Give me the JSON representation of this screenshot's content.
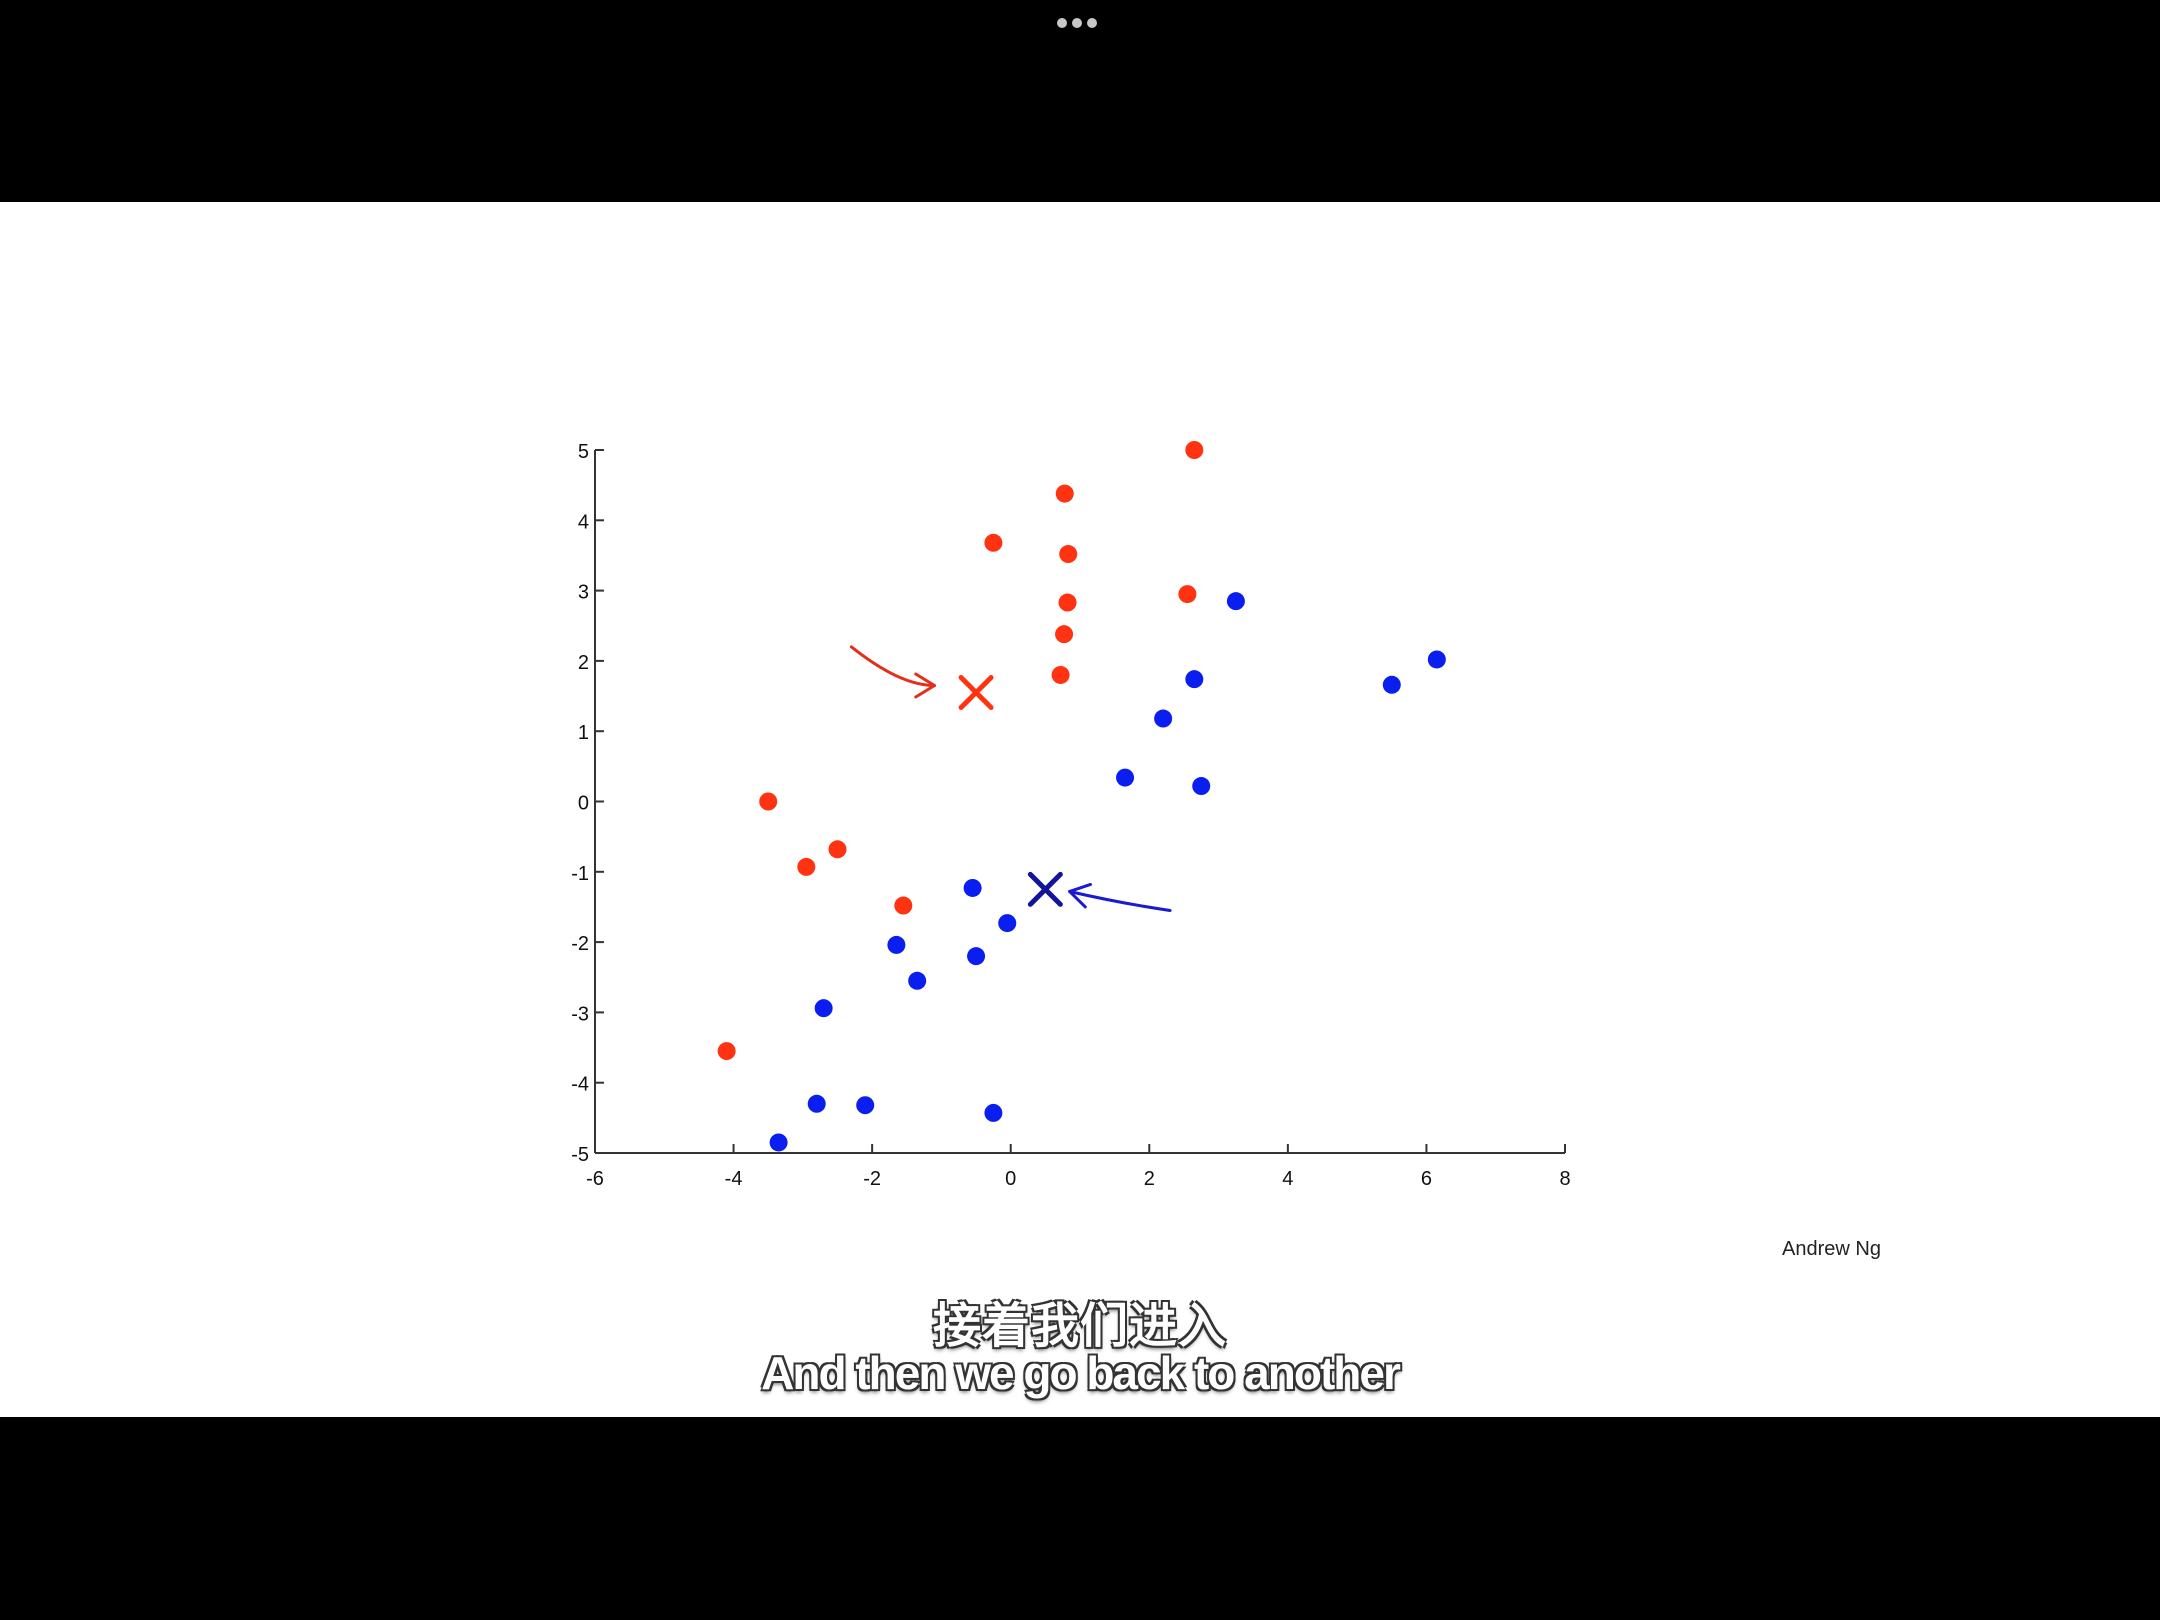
{
  "player": {
    "menu_icon": "more-dots-icon"
  },
  "slide": {
    "author": "Andrew Ng"
  },
  "subtitles": {
    "chinese": "接着我们进入",
    "english": "And then we go back to another"
  },
  "colors": {
    "red_cluster": "#ff3311",
    "blue_cluster": "#0a1ef0",
    "blue_centroid": "#14149a",
    "axis": "#333333"
  },
  "chart_data": {
    "type": "scatter",
    "xlim": [
      -6,
      8
    ],
    "ylim": [
      -5,
      5
    ],
    "x_ticks": [
      "-6",
      "-4",
      "-2",
      "0",
      "2",
      "4",
      "6",
      "8"
    ],
    "y_ticks": [
      "5",
      "4",
      "3",
      "2",
      "1",
      "0",
      "-1",
      "-2",
      "-3",
      "-4",
      "-5"
    ],
    "grid": false,
    "series": [
      {
        "color": "#ff3311",
        "points": [
          [
            2.65,
            5.0
          ],
          [
            0.78,
            4.38
          ],
          [
            -0.25,
            3.68
          ],
          [
            0.83,
            3.52
          ],
          [
            2.55,
            2.95
          ],
          [
            0.82,
            2.83
          ],
          [
            0.77,
            2.38
          ],
          [
            0.72,
            1.8
          ],
          [
            -3.5,
            0.0
          ],
          [
            -2.95,
            -0.93
          ],
          [
            -2.5,
            -0.68
          ],
          [
            -1.55,
            -1.48
          ],
          [
            -4.1,
            -3.55
          ]
        ]
      },
      {
        "color": "#0a1ef0",
        "points": [
          [
            3.25,
            2.85
          ],
          [
            6.15,
            2.02
          ],
          [
            2.65,
            1.74
          ],
          [
            5.5,
            1.66
          ],
          [
            2.2,
            1.18
          ],
          [
            1.65,
            0.34
          ],
          [
            2.75,
            0.22
          ],
          [
            -0.55,
            -1.23
          ],
          [
            -0.05,
            -1.73
          ],
          [
            -1.65,
            -2.04
          ],
          [
            -0.5,
            -2.2
          ],
          [
            -1.35,
            -2.55
          ],
          [
            -2.7,
            -2.94
          ],
          [
            -2.8,
            -4.3
          ],
          [
            -2.1,
            -4.32
          ],
          [
            -0.25,
            -4.43
          ],
          [
            -3.35,
            -4.85
          ]
        ]
      }
    ],
    "centroids": [
      {
        "color": "#ff3311",
        "x": -0.5,
        "y": 1.55
      },
      {
        "color": "#14149a",
        "x": 0.5,
        "y": -1.25
      }
    ],
    "annotations": [
      {
        "type": "arrow",
        "color": "#e2301a",
        "points": [
          [
            -2.3,
            2.2
          ],
          [
            -1.6,
            1.65
          ],
          [
            -1.1,
            1.65
          ]
        ]
      },
      {
        "type": "arrow",
        "color": "#1a1ad0",
        "points": [
          [
            2.3,
            -1.55
          ],
          [
            1.6,
            -1.45
          ],
          [
            0.85,
            -1.28
          ]
        ]
      }
    ]
  }
}
